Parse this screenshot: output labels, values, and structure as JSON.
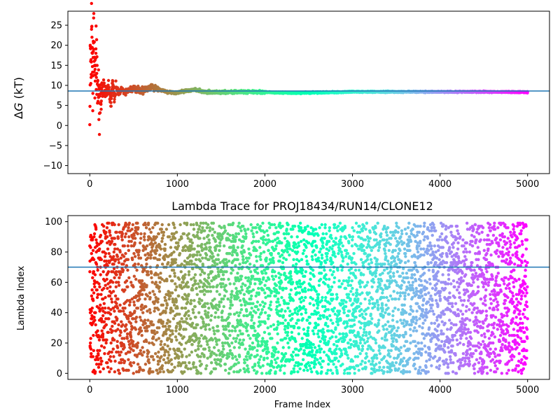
{
  "chart_data": [
    {
      "type": "scatter",
      "title": "",
      "xlabel": "",
      "ylabel": "ΔG (kT)",
      "xlim": [
        -250,
        5250
      ],
      "ylim": [
        -12,
        28.5
      ],
      "xticks": [
        0,
        1000,
        2000,
        3000,
        4000,
        5000
      ],
      "yticks": [
        -10,
        -5,
        0,
        5,
        10,
        15,
        20,
        25
      ],
      "grid": false,
      "colormap": "rainbow (frame 0 = red → frame 5000 = violet)",
      "hline": {
        "y": 8.6,
        "color": "#1f77b4"
      },
      "series": [
        {
          "x": [
            0,
            5,
            10,
            15,
            20,
            25,
            30,
            35,
            40,
            45,
            50,
            55,
            60,
            65,
            70,
            75,
            80,
            90,
            100,
            110,
            120,
            130,
            140,
            150,
            160,
            180,
            200,
            220,
            240,
            260,
            280,
            300,
            330,
            360,
            400,
            450,
            500,
            600,
            700,
            800,
            900,
            1000,
            1100,
            1200,
            1300,
            1500,
            1700,
            2000,
            2300,
            2600,
            3000,
            3500,
            4000,
            4500,
            5000
          ],
          "y": [
            0.2,
            20.0,
            16.0,
            12.0,
            24.0,
            22.0,
            18.0,
            8.0,
            21.0,
            19.0,
            16.0,
            17.0,
            14.0,
            15.0,
            18.0,
            12.0,
            13.0,
            11.0,
            7.0,
            3.0,
            10.0,
            6.0,
            9.5,
            7.5,
            10.0,
            8.0,
            9.0,
            8.5,
            6.0,
            10.5,
            7.0,
            9.5,
            8.0,
            9.0,
            8.3,
            8.8,
            9.2,
            8.6,
            9.5,
            8.9,
            8.3,
            8.2,
            8.6,
            9.0,
            8.3,
            8.3,
            8.4,
            8.3,
            8.1,
            8.2,
            8.4,
            8.4,
            8.4,
            8.4,
            8.3
          ]
        }
      ]
    },
    {
      "type": "scatter",
      "title": "Lambda Trace for PROJ18434/RUN14/CLONE12",
      "xlabel": "Frame Index",
      "ylabel": "Lambda Index",
      "xlim": [
        -250,
        5250
      ],
      "ylim": [
        -4,
        104
      ],
      "xticks": [
        0,
        1000,
        2000,
        3000,
        4000,
        5000
      ],
      "yticks": [
        0,
        20,
        40,
        60,
        80,
        100
      ],
      "grid": false,
      "colormap": "rainbow (frame 0 = red → frame 5000 = violet)",
      "hline": {
        "y": 70,
        "color": "#1f77b4"
      },
      "series": [
        {
          "x_range": [
            0,
            5000
          ],
          "y_range": [
            0,
            99
          ],
          "n_points": 5000,
          "distribution": "lambda index scattered roughly uniformly over 0–99 across all frames"
        }
      ]
    }
  ]
}
